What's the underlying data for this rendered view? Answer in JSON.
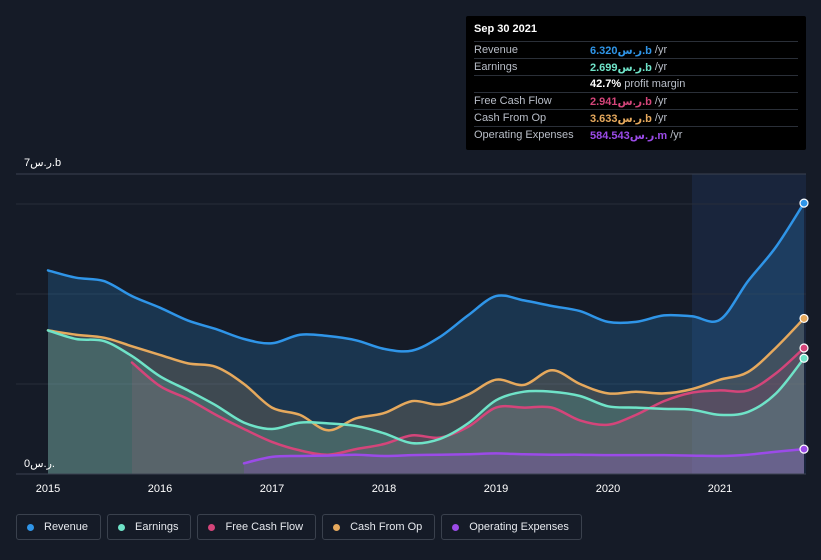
{
  "colors": {
    "revenue": "#2f95e8",
    "earnings": "#6fe3c8",
    "fcf": "#d4457a",
    "cfo": "#e6a95d",
    "opex": "#9b4be8"
  },
  "tooltip": {
    "date": "Sep 30 2021",
    "rows": [
      {
        "label": "Revenue",
        "value": "6.320ر.س.b",
        "suffix": "/yr",
        "color": "#2f95e8"
      },
      {
        "label": "Earnings",
        "value": "2.699ر.س.b",
        "suffix": "/yr",
        "color": "#6fe3c8"
      },
      {
        "label": "",
        "value": "42.7%",
        "suffix": "profit margin",
        "color": "#ffffff"
      },
      {
        "label": "Free Cash Flow",
        "value": "2.941ر.س.b",
        "suffix": "/yr",
        "color": "#d4457a"
      },
      {
        "label": "Cash From Op",
        "value": "3.633ر.س.b",
        "suffix": "/yr",
        "color": "#e6a95d"
      },
      {
        "label": "Operating Expenses",
        "value": "584.543ر.س.m",
        "suffix": "/yr",
        "color": "#9b4be8"
      }
    ]
  },
  "legend": [
    {
      "label": "Revenue",
      "color": "#2f95e8"
    },
    {
      "label": "Earnings",
      "color": "#6fe3c8"
    },
    {
      "label": "Free Cash Flow",
      "color": "#d4457a"
    },
    {
      "label": "Cash From Op",
      "color": "#e6a95d"
    },
    {
      "label": "Operating Expenses",
      "color": "#9b4be8"
    }
  ],
  "chart_data": {
    "type": "area",
    "y_top_label": "7ر.س.b",
    "y_bottom_label": "0ر.س.",
    "ylim": [
      0,
      7
    ],
    "xlim": [
      2015,
      2021.75
    ],
    "x_ticks": [
      {
        "value": 2015,
        "label": "2015"
      },
      {
        "value": 2016,
        "label": "2016"
      },
      {
        "value": 2017,
        "label": "2017"
      },
      {
        "value": 2018,
        "label": "2018"
      },
      {
        "value": 2019,
        "label": "2019"
      },
      {
        "value": 2020,
        "label": "2020"
      },
      {
        "value": 2021,
        "label": "2021"
      }
    ],
    "grid_values": [
      2.1,
      4.2,
      6.3
    ],
    "highlight_start": 2020.75,
    "series": [
      {
        "name": "Revenue",
        "key": "revenue",
        "fill_opacity": 0.35,
        "points": [
          [
            2015.0,
            4.75
          ],
          [
            2015.25,
            4.58
          ],
          [
            2015.5,
            4.5
          ],
          [
            2015.75,
            4.15
          ],
          [
            2016.0,
            3.88
          ],
          [
            2016.25,
            3.58
          ],
          [
            2016.5,
            3.38
          ],
          [
            2016.75,
            3.15
          ],
          [
            2017.0,
            3.05
          ],
          [
            2017.25,
            3.25
          ],
          [
            2017.5,
            3.22
          ],
          [
            2017.75,
            3.12
          ],
          [
            2018.0,
            2.92
          ],
          [
            2018.25,
            2.88
          ],
          [
            2018.5,
            3.2
          ],
          [
            2018.75,
            3.7
          ],
          [
            2019.0,
            4.15
          ],
          [
            2019.25,
            4.05
          ],
          [
            2019.5,
            3.92
          ],
          [
            2019.75,
            3.8
          ],
          [
            2020.0,
            3.55
          ],
          [
            2020.25,
            3.55
          ],
          [
            2020.5,
            3.7
          ],
          [
            2020.75,
            3.68
          ],
          [
            2021.0,
            3.6
          ],
          [
            2021.25,
            4.5
          ],
          [
            2021.5,
            5.3
          ],
          [
            2021.75,
            6.32
          ]
        ]
      },
      {
        "name": "Cash From Op",
        "key": "cfo",
        "fill_opacity": 0.3,
        "points": [
          [
            2015.0,
            3.35
          ],
          [
            2015.25,
            3.25
          ],
          [
            2015.5,
            3.18
          ],
          [
            2015.75,
            2.98
          ],
          [
            2016.0,
            2.78
          ],
          [
            2016.25,
            2.58
          ],
          [
            2016.5,
            2.5
          ],
          [
            2016.75,
            2.1
          ],
          [
            2017.0,
            1.55
          ],
          [
            2017.25,
            1.38
          ],
          [
            2017.5,
            1.02
          ],
          [
            2017.75,
            1.3
          ],
          [
            2018.0,
            1.42
          ],
          [
            2018.25,
            1.7
          ],
          [
            2018.5,
            1.62
          ],
          [
            2018.75,
            1.85
          ],
          [
            2019.0,
            2.2
          ],
          [
            2019.25,
            2.08
          ],
          [
            2019.5,
            2.42
          ],
          [
            2019.75,
            2.1
          ],
          [
            2020.0,
            1.88
          ],
          [
            2020.25,
            1.92
          ],
          [
            2020.5,
            1.88
          ],
          [
            2020.75,
            1.98
          ],
          [
            2021.0,
            2.2
          ],
          [
            2021.25,
            2.38
          ],
          [
            2021.5,
            2.95
          ],
          [
            2021.75,
            3.63
          ]
        ]
      },
      {
        "name": "Free Cash Flow",
        "key": "fcf",
        "fill_opacity": 0.25,
        "start_drop": true,
        "points": [
          [
            2015.75,
            2.6
          ],
          [
            2016.0,
            2.05
          ],
          [
            2016.25,
            1.75
          ],
          [
            2016.5,
            1.38
          ],
          [
            2016.75,
            1.05
          ],
          [
            2017.0,
            0.75
          ],
          [
            2017.25,
            0.55
          ],
          [
            2017.5,
            0.45
          ],
          [
            2017.75,
            0.58
          ],
          [
            2018.0,
            0.7
          ],
          [
            2018.25,
            0.9
          ],
          [
            2018.5,
            0.85
          ],
          [
            2018.75,
            1.1
          ],
          [
            2019.0,
            1.55
          ],
          [
            2019.25,
            1.55
          ],
          [
            2019.5,
            1.55
          ],
          [
            2019.75,
            1.25
          ],
          [
            2020.0,
            1.15
          ],
          [
            2020.25,
            1.38
          ],
          [
            2020.5,
            1.7
          ],
          [
            2020.75,
            1.9
          ],
          [
            2021.0,
            1.95
          ],
          [
            2021.25,
            1.95
          ],
          [
            2021.5,
            2.35
          ],
          [
            2021.75,
            2.94
          ]
        ]
      },
      {
        "name": "Earnings",
        "key": "earnings",
        "fill_opacity": 0.3,
        "points": [
          [
            2015.0,
            3.35
          ],
          [
            2015.25,
            3.15
          ],
          [
            2015.5,
            3.1
          ],
          [
            2015.75,
            2.75
          ],
          [
            2016.0,
            2.28
          ],
          [
            2016.25,
            1.95
          ],
          [
            2016.5,
            1.6
          ],
          [
            2016.75,
            1.2
          ],
          [
            2017.0,
            1.05
          ],
          [
            2017.25,
            1.2
          ],
          [
            2017.5,
            1.18
          ],
          [
            2017.75,
            1.12
          ],
          [
            2018.0,
            0.95
          ],
          [
            2018.25,
            0.72
          ],
          [
            2018.5,
            0.82
          ],
          [
            2018.75,
            1.18
          ],
          [
            2019.0,
            1.72
          ],
          [
            2019.25,
            1.92
          ],
          [
            2019.5,
            1.92
          ],
          [
            2019.75,
            1.82
          ],
          [
            2020.0,
            1.58
          ],
          [
            2020.25,
            1.55
          ],
          [
            2020.5,
            1.52
          ],
          [
            2020.75,
            1.5
          ],
          [
            2021.0,
            1.38
          ],
          [
            2021.25,
            1.45
          ],
          [
            2021.5,
            1.88
          ],
          [
            2021.75,
            2.7
          ]
        ]
      },
      {
        "name": "Operating Expenses",
        "key": "opex",
        "fill_opacity": 0.35,
        "start_drop": true,
        "points": [
          [
            2016.75,
            0.25
          ],
          [
            2017.0,
            0.4
          ],
          [
            2017.25,
            0.42
          ],
          [
            2017.5,
            0.43
          ],
          [
            2017.75,
            0.45
          ],
          [
            2018.0,
            0.42
          ],
          [
            2018.25,
            0.44
          ],
          [
            2018.5,
            0.45
          ],
          [
            2018.75,
            0.46
          ],
          [
            2019.0,
            0.48
          ],
          [
            2019.25,
            0.46
          ],
          [
            2019.5,
            0.45
          ],
          [
            2019.75,
            0.45
          ],
          [
            2020.0,
            0.44
          ],
          [
            2020.25,
            0.44
          ],
          [
            2020.5,
            0.44
          ],
          [
            2020.75,
            0.43
          ],
          [
            2021.0,
            0.42
          ],
          [
            2021.25,
            0.45
          ],
          [
            2021.5,
            0.52
          ],
          [
            2021.75,
            0.58
          ]
        ]
      }
    ]
  }
}
